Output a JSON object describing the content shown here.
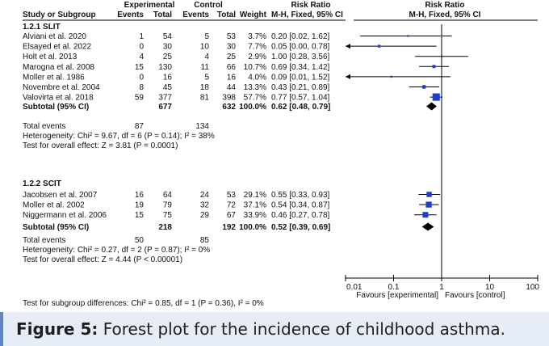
{
  "chart_data": {
    "type": "forest",
    "headers": {
      "group_experimental": "Experimental",
      "group_control": "Control",
      "risk_ratio": "Risk Ratio",
      "study": "Study or Subgroup",
      "events": "Events",
      "total": "Total",
      "weight": "Weight",
      "method": "M-H, Fixed, 95% CI",
      "plot_title": "Risk Ratio",
      "plot_method": "M-H, Fixed, 95% CI"
    },
    "subgroups": [
      {
        "label": "1.2.1 SLIT",
        "studies": [
          {
            "name": "Alviani et al. 2020",
            "exp_events": "1",
            "exp_total": "54",
            "ctl_events": "5",
            "ctl_total": "53",
            "weight_text": "3.7%",
            "ci_text": "0.20 [0.02, 1.62]",
            "rr": 0.2,
            "lo": 0.02,
            "hi": 1.62,
            "weight": 3.7
          },
          {
            "name": "Elsayed et al. 2022",
            "exp_events": "0",
            "exp_total": "30",
            "ctl_events": "10",
            "ctl_total": "30",
            "weight_text": "7.7%",
            "ci_text": "0.05 [0.00, 0.78]",
            "rr": 0.05,
            "lo": 0.003,
            "hi": 0.78,
            "weight": 7.7
          },
          {
            "name": "Holt et al. 2013",
            "exp_events": "4",
            "exp_total": "25",
            "ctl_events": "4",
            "ctl_total": "25",
            "weight_text": "2.9%",
            "ci_text": "1.00 [0.28, 3.56]",
            "rr": 1.0,
            "lo": 0.28,
            "hi": 3.56,
            "weight": 2.9
          },
          {
            "name": "Marogna et al. 2008",
            "exp_events": "15",
            "exp_total": "130",
            "ctl_events": "11",
            "ctl_total": "66",
            "weight_text": "10.7%",
            "ci_text": "0.69 [0.34, 1.42]",
            "rr": 0.69,
            "lo": 0.34,
            "hi": 1.42,
            "weight": 10.7
          },
          {
            "name": "Moller et al. 1986",
            "exp_events": "0",
            "exp_total": "16",
            "ctl_events": "5",
            "ctl_total": "16",
            "weight_text": "4.0%",
            "ci_text": "0.09 [0.01, 1.52]",
            "rr": 0.09,
            "lo": 0.005,
            "hi": 1.52,
            "weight": 4.0
          },
          {
            "name": "Novembre et al. 2004",
            "exp_events": "8",
            "exp_total": "45",
            "ctl_events": "18",
            "ctl_total": "44",
            "weight_text": "13.3%",
            "ci_text": "0.43 [0.21, 0.89]",
            "rr": 0.43,
            "lo": 0.21,
            "hi": 0.89,
            "weight": 13.3
          },
          {
            "name": "Valovirta et al. 2018",
            "exp_events": "59",
            "exp_total": "377",
            "ctl_events": "81",
            "ctl_total": "398",
            "weight_text": "57.7%",
            "ci_text": "0.77 [0.57, 1.04]",
            "rr": 0.77,
            "lo": 0.57,
            "hi": 1.04,
            "weight": 57.7
          }
        ],
        "subtotal": {
          "label": "Subtotal (95% CI)",
          "exp_total": "677",
          "ctl_total": "632",
          "weight_text": "100.0%",
          "ci_text": "0.62 [0.48, 0.79]",
          "rr": 0.62,
          "lo": 0.48,
          "hi": 0.79
        },
        "total_events": {
          "label": "Total events",
          "exp": "87",
          "ctl": "134"
        },
        "heterogeneity": "Heterogeneity: Chi² = 9.67, df = 6 (P = 0.14); I² = 38%",
        "overall_effect": "Test for overall effect: Z = 3.81 (P = 0.0001)"
      },
      {
        "label": "1.2.2 SCIT",
        "studies": [
          {
            "name": "Jacobsen et al. 2007",
            "exp_events": "16",
            "exp_total": "64",
            "ctl_events": "24",
            "ctl_total": "53",
            "weight_text": "29.1%",
            "ci_text": "0.55 [0.33, 0.93]",
            "rr": 0.55,
            "lo": 0.33,
            "hi": 0.93,
            "weight": 29.1
          },
          {
            "name": "Moller et al. 2002",
            "exp_events": "19",
            "exp_total": "79",
            "ctl_events": "32",
            "ctl_total": "72",
            "weight_text": "37.1%",
            "ci_text": "0.54 [0.34, 0.87]",
            "rr": 0.54,
            "lo": 0.34,
            "hi": 0.87,
            "weight": 37.1
          },
          {
            "name": "Niggermann et al. 2006",
            "exp_events": "15",
            "exp_total": "75",
            "ctl_events": "29",
            "ctl_total": "67",
            "weight_text": "33.9%",
            "ci_text": "0.46 [0.27, 0.78]",
            "rr": 0.46,
            "lo": 0.27,
            "hi": 0.78,
            "weight": 33.9
          }
        ],
        "subtotal": {
          "label": "Subtotal (95% CI)",
          "exp_total": "218",
          "ctl_total": "192",
          "weight_text": "100.0%",
          "ci_text": "0.52 [0.39, 0.69]",
          "rr": 0.52,
          "lo": 0.39,
          "hi": 0.69
        },
        "total_events": {
          "label": "Total events",
          "exp": "50",
          "ctl": "85"
        },
        "heterogeneity": "Heterogeneity: Chi² = 0.27, df = 2 (P = 0.87); I² = 0%",
        "overall_effect": "Test for overall effect: Z = 4.44 (P < 0.00001)"
      }
    ],
    "axis": {
      "scale": "log",
      "range": [
        0.01,
        100
      ],
      "ticks": [
        "0.01",
        "0.1",
        "1",
        "10",
        "100"
      ],
      "tick_values": [
        0.01,
        0.1,
        1,
        10,
        100
      ],
      "favours_left": "Favours [experimental]",
      "favours_right": "Favours [control]"
    },
    "subgroup_difference": "Test for subgroup differences: Chi² = 0.85, df = 1 (P = 0.36), I² = 0%",
    "colors": {
      "study_marker": "#1f3fc4",
      "line": "#000000",
      "diamond": "#000000"
    }
  },
  "caption": {
    "label": "Figure 5:",
    "text": " Forest plot for the incidence of childhood asthma."
  }
}
